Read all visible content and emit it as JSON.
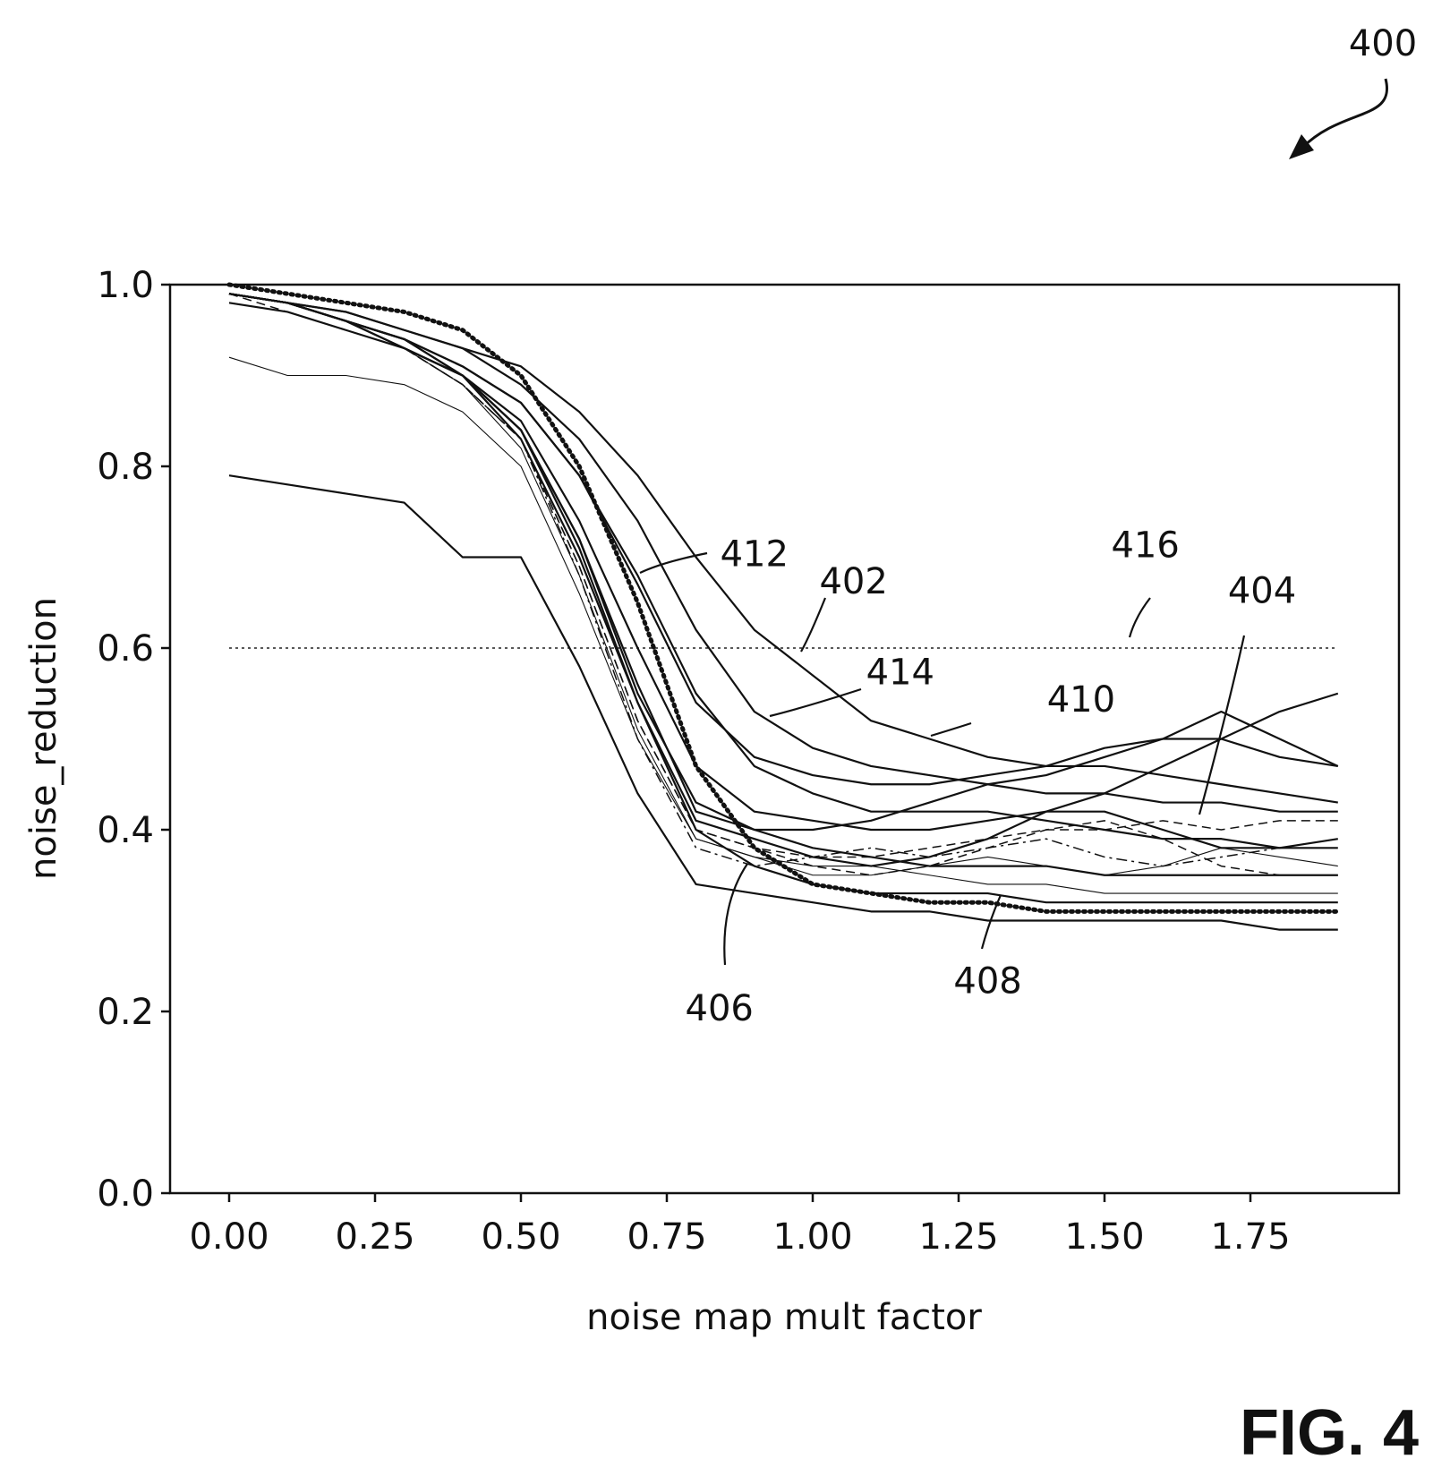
{
  "figure": {
    "label": "FIG. 4",
    "ref_number": "400"
  },
  "chart_data": {
    "type": "line",
    "xlabel": "noise map mult factor",
    "ylabel": "noise_reduction",
    "xlim": [
      -0.1,
      2.0
    ],
    "ylim": [
      0.0,
      1.0
    ],
    "xticks": [
      "0.00",
      "0.25",
      "0.50",
      "0.75",
      "1.00",
      "1.25",
      "1.50",
      "1.75"
    ],
    "yticks": [
      "0.0",
      "0.2",
      "0.4",
      "0.6",
      "0.8",
      "1.0"
    ],
    "grid": false,
    "x": [
      0.0,
      0.1,
      0.2,
      0.3,
      0.4,
      0.5,
      0.6,
      0.7,
      0.8,
      0.9,
      1.0,
      1.1,
      1.2,
      1.3,
      1.4,
      1.5,
      1.6,
      1.7,
      1.8,
      1.9
    ],
    "threshold": {
      "y": 0.6,
      "ref": "416",
      "style": "dotted"
    },
    "series": [
      {
        "ref": "402",
        "style": "solid",
        "values": [
          0.99,
          0.98,
          0.97,
          0.95,
          0.93,
          0.91,
          0.86,
          0.79,
          0.7,
          0.62,
          0.57,
          0.52,
          0.5,
          0.48,
          0.47,
          0.47,
          0.46,
          0.45,
          0.44,
          0.43
        ]
      },
      {
        "ref": "404",
        "style": "solid",
        "values": [
          0.99,
          0.98,
          0.96,
          0.93,
          0.9,
          0.85,
          0.74,
          0.6,
          0.47,
          0.42,
          0.41,
          0.4,
          0.4,
          0.41,
          0.42,
          0.42,
          0.4,
          0.38,
          0.38,
          0.39
        ]
      },
      {
        "ref": "406",
        "style": "solid",
        "values": [
          0.99,
          0.98,
          0.96,
          0.93,
          0.9,
          0.83,
          0.7,
          0.54,
          0.4,
          0.36,
          0.34,
          0.33,
          0.33,
          0.33,
          0.32,
          0.32,
          0.32,
          0.32,
          0.32,
          0.32
        ]
      },
      {
        "ref": "408",
        "style": "dotted-heavy",
        "values": [
          1.0,
          0.99,
          0.98,
          0.97,
          0.95,
          0.9,
          0.8,
          0.65,
          0.47,
          0.38,
          0.34,
          0.33,
          0.32,
          0.32,
          0.31,
          0.31,
          0.31,
          0.31,
          0.31,
          0.31
        ]
      },
      {
        "ref": "410",
        "style": "solid",
        "values": [
          0.99,
          0.98,
          0.96,
          0.94,
          0.91,
          0.87,
          0.79,
          0.68,
          0.55,
          0.47,
          0.44,
          0.42,
          0.42,
          0.42,
          0.41,
          0.4,
          0.39,
          0.39,
          0.38,
          0.38
        ]
      },
      {
        "ref": "412",
        "style": "solid",
        "values": [
          0.99,
          0.98,
          0.97,
          0.95,
          0.93,
          0.89,
          0.83,
          0.74,
          0.62,
          0.53,
          0.49,
          0.47,
          0.46,
          0.45,
          0.44,
          0.44,
          0.43,
          0.43,
          0.42,
          0.42
        ]
      },
      {
        "ref": "414",
        "style": "solid",
        "values": [
          0.99,
          0.98,
          0.96,
          0.94,
          0.91,
          0.87,
          0.79,
          0.67,
          0.54,
          0.48,
          0.46,
          0.45,
          0.45,
          0.46,
          0.47,
          0.49,
          0.5,
          0.5,
          0.48,
          0.47
        ]
      },
      {
        "style": "solid",
        "values": [
          0.79,
          0.78,
          0.77,
          0.76,
          0.7,
          0.7,
          0.58,
          0.44,
          0.34,
          0.33,
          0.32,
          0.31,
          0.31,
          0.3,
          0.3,
          0.3,
          0.3,
          0.3,
          0.29,
          0.29
        ]
      },
      {
        "style": "thin",
        "values": [
          0.92,
          0.9,
          0.9,
          0.89,
          0.86,
          0.8,
          0.66,
          0.5,
          0.39,
          0.37,
          0.36,
          0.36,
          0.35,
          0.34,
          0.34,
          0.33,
          0.33,
          0.33,
          0.33,
          0.33
        ]
      },
      {
        "style": "dashdot",
        "values": [
          0.99,
          0.98,
          0.96,
          0.93,
          0.89,
          0.83,
          0.68,
          0.5,
          0.38,
          0.36,
          0.37,
          0.38,
          0.37,
          0.38,
          0.39,
          0.37,
          0.36,
          0.37,
          0.38,
          0.38
        ]
      },
      {
        "style": "dashed",
        "values": [
          0.99,
          0.97,
          0.95,
          0.93,
          0.89,
          0.83,
          0.69,
          0.52,
          0.4,
          0.38,
          0.36,
          0.35,
          0.36,
          0.38,
          0.4,
          0.41,
          0.39,
          0.36,
          0.35,
          0.35
        ]
      },
      {
        "style": "solid",
        "values": [
          0.98,
          0.97,
          0.95,
          0.93,
          0.9,
          0.84,
          0.72,
          0.56,
          0.42,
          0.4,
          0.4,
          0.41,
          0.43,
          0.45,
          0.46,
          0.48,
          0.5,
          0.53,
          0.5,
          0.47
        ]
      },
      {
        "style": "solid",
        "values": [
          0.99,
          0.98,
          0.96,
          0.94,
          0.9,
          0.84,
          0.71,
          0.54,
          0.41,
          0.39,
          0.37,
          0.36,
          0.37,
          0.39,
          0.42,
          0.44,
          0.47,
          0.5,
          0.53,
          0.55
        ]
      },
      {
        "style": "solid",
        "values": [
          0.99,
          0.98,
          0.96,
          0.94,
          0.9,
          0.84,
          0.72,
          0.55,
          0.43,
          0.4,
          0.38,
          0.37,
          0.36,
          0.36,
          0.36,
          0.35,
          0.35,
          0.35,
          0.35,
          0.35
        ]
      },
      {
        "style": "thin",
        "values": [
          0.99,
          0.98,
          0.96,
          0.93,
          0.89,
          0.82,
          0.68,
          0.51,
          0.39,
          0.37,
          0.35,
          0.35,
          0.36,
          0.37,
          0.36,
          0.35,
          0.36,
          0.38,
          0.37,
          0.36
        ]
      },
      {
        "style": "dashed",
        "values": [
          0.99,
          0.98,
          0.96,
          0.93,
          0.89,
          0.83,
          0.69,
          0.52,
          0.4,
          0.38,
          0.37,
          0.37,
          0.38,
          0.39,
          0.4,
          0.4,
          0.41,
          0.4,
          0.41,
          0.41
        ]
      }
    ],
    "annotations": [
      {
        "ref": "402",
        "x": 1.07,
        "y": 0.66
      },
      {
        "ref": "404",
        "x": 1.77,
        "y": 0.65
      },
      {
        "ref": "406",
        "x": 0.84,
        "y": 0.19
      },
      {
        "ref": "408",
        "x": 1.3,
        "y": 0.22
      },
      {
        "ref": "410",
        "x": 1.46,
        "y": 0.53
      },
      {
        "ref": "412",
        "x": 0.9,
        "y": 0.69
      },
      {
        "ref": "414",
        "x": 1.15,
        "y": 0.56
      },
      {
        "ref": "416",
        "x": 1.57,
        "y": 0.7
      }
    ]
  }
}
